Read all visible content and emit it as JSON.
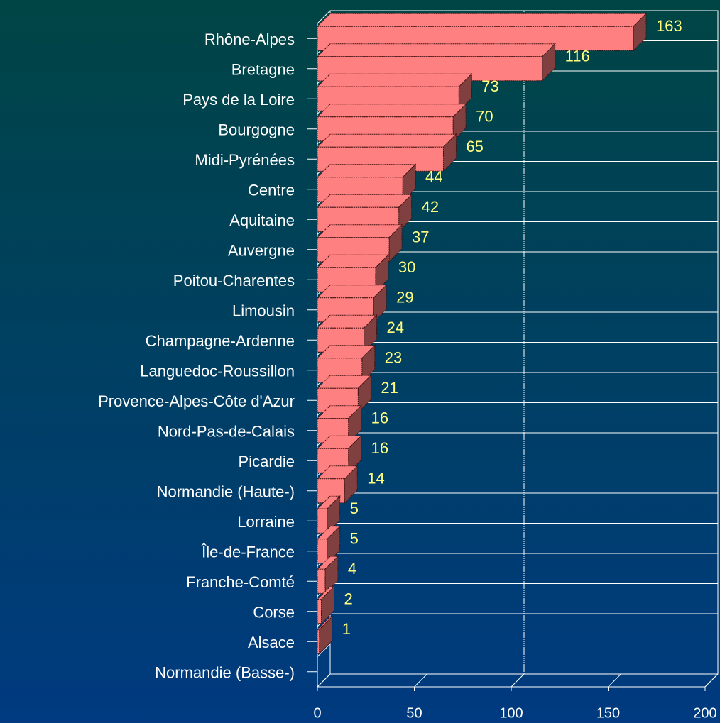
{
  "chart_data": {
    "type": "bar",
    "orientation": "horizontal",
    "categories": [
      "Rhône-Alpes",
      "Bretagne",
      "Pays de la Loire",
      "Bourgogne",
      "Midi-Pyrénées",
      "Centre",
      "Aquitaine",
      "Auvergne",
      "Poitou-Charentes",
      "Limousin",
      "Champagne-Ardenne",
      "Languedoc-Roussillon",
      "Provence-Alpes-Côte d'Azur",
      "Nord-Pas-de-Calais",
      "Picardie",
      "Normandie (Haute-)",
      "Lorraine",
      "Île-de-France",
      "Franche-Comté",
      "Corse",
      "Alsace",
      "Normandie (Basse-)"
    ],
    "values": [
      163,
      116,
      73,
      70,
      65,
      44,
      42,
      37,
      30,
      29,
      24,
      23,
      21,
      16,
      16,
      14,
      5,
      5,
      4,
      2,
      1,
      null
    ],
    "color": "#ff8080",
    "side_color": "#804040",
    "label_color": "#ffff80",
    "xlim": [
      0,
      200
    ],
    "xticks": [
      0,
      50,
      100,
      150,
      200
    ],
    "grid": true
  }
}
